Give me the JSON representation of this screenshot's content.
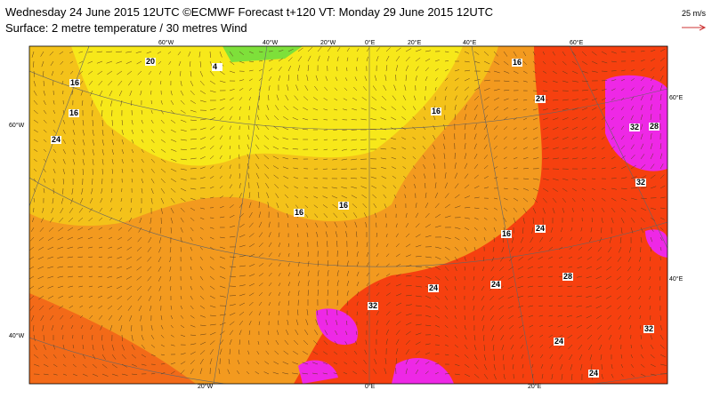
{
  "header": {
    "title": "Wednesday 24 June 2015 12UTC ©ECMWF Forecast t+120 VT: Monday 29 June 2015 12UTC",
    "subtitle": "Surface: 2 metre temperature / 30 metres Wind",
    "wind_scale": "25 m/s"
  },
  "grid_labels": {
    "top": [
      "60°W",
      "40°W",
      "20°W",
      "0°E",
      "20°E",
      "40°E",
      "60°E"
    ],
    "left": [
      "60°W",
      "40°W"
    ],
    "right": [
      "60°E",
      "40°E"
    ],
    "bottom": [
      "20°W",
      "0°E",
      "20°E"
    ]
  },
  "contour_labels": [
    16,
    16,
    24,
    20,
    4,
    16,
    16,
    16,
    16,
    24,
    16,
    24,
    24,
    24,
    28,
    32,
    24,
    32,
    32,
    32,
    28,
    24
  ]
}
